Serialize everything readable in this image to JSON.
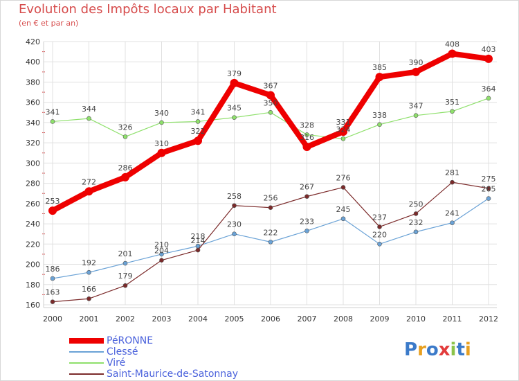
{
  "header": {
    "title": "Evolution des Impôts locaux par Habitant",
    "subtitle": "(en € et par an)"
  },
  "logo": {
    "text": "Proxiti",
    "letters": [
      "P",
      "r",
      "o",
      "x",
      "i",
      "t",
      "i"
    ]
  },
  "colors": {
    "title": "#d64b4b",
    "legend_text": "#4b62dc",
    "grid": "#e0e0e0",
    "axis_text": "#333333"
  },
  "chart_data": {
    "type": "line",
    "title": "Evolution des Impôts locaux par Habitant",
    "subtitle": "(en € et par an)",
    "x": [
      "2000",
      "2001",
      "2002",
      "2003",
      "2004",
      "2005",
      "2006",
      "2007",
      "2008",
      "2009",
      "2010",
      "2011",
      "2012"
    ],
    "yticks": [
      "160",
      "180",
      "200",
      "220",
      "240",
      "260",
      "280",
      "300",
      "320",
      "340",
      "360",
      "380",
      "400",
      "420"
    ],
    "ylim": [
      160,
      420
    ],
    "grid": true,
    "legend_position": "bottom-left",
    "series": [
      {
        "name": "PéRONNE",
        "color": "#ee0000",
        "values": [
          253,
          272,
          286,
          310,
          322,
          379,
          367,
          316,
          331,
          385,
          390,
          408,
          403
        ],
        "labels": [
          "253",
          "272",
          "286",
          "310",
          "322",
          "379",
          "367",
          "316",
          "331",
          "385",
          "390",
          "408",
          "403"
        ]
      },
      {
        "name": "Clessé",
        "color": "#6aa2d6",
        "values": [
          186,
          192,
          201,
          210,
          218,
          230,
          222,
          233,
          245,
          220,
          232,
          241,
          265
        ],
        "labels": [
          "186",
          "192",
          "201",
          "210",
          "218",
          "230",
          "222",
          "233",
          "245",
          "220",
          "232",
          "241",
          "265"
        ]
      },
      {
        "name": "Viré",
        "color": "#8ee06b",
        "values": [
          341,
          344,
          326,
          340,
          341,
          345,
          350,
          328,
          324,
          338,
          347,
          351,
          364
        ],
        "labels": [
          "341",
          "344",
          "326",
          "340",
          "341",
          "345",
          "350",
          "328",
          "324",
          "338",
          "347",
          "351",
          "364"
        ]
      },
      {
        "name": "Saint-Maurice-de-Satonnay",
        "color": "#7b2a2a",
        "values": [
          163,
          166,
          179,
          204,
          214,
          258,
          256,
          267,
          276,
          237,
          250,
          281,
          275
        ],
        "labels": [
          "163",
          "166",
          "179",
          "204",
          "214",
          "258",
          "256",
          "267",
          "276",
          "237",
          "250",
          "281",
          "275"
        ]
      }
    ]
  }
}
